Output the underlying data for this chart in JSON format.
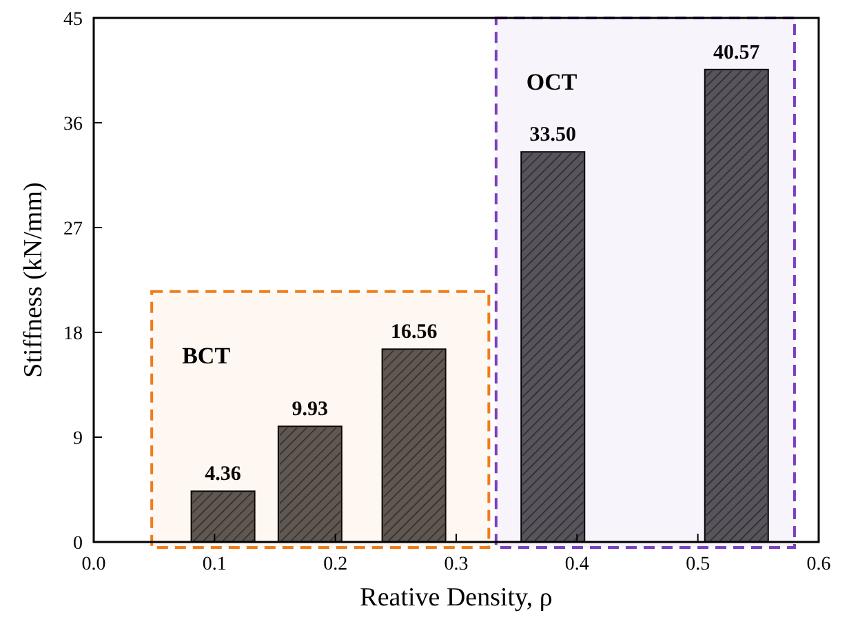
{
  "chart_data": {
    "type": "bar",
    "xlabel": "Reative Density, ρ",
    "ylabel": "Stiffness (kN/mm)",
    "x": [
      0.107,
      0.179,
      0.265,
      0.38,
      0.532
    ],
    "values": [
      4.36,
      9.93,
      16.56,
      33.5,
      40.57
    ],
    "value_labels": [
      "4.36",
      "9.93",
      "16.56",
      "33.50",
      "40.57"
    ],
    "color": "#555555",
    "xlim": [
      0,
      0.6
    ],
    "xticks": [
      {
        "value": 0,
        "label": "0.0"
      },
      0.1,
      0.2,
      0.3,
      0.4,
      0.5,
      0.6
    ],
    "ylim": [
      0,
      45
    ],
    "yticks": [
      0,
      9,
      18,
      27,
      36,
      45
    ],
    "bands": [
      {
        "axis": "x",
        "from": 0.048,
        "to": 0.327,
        "label": "BCT",
        "color": "#ee7d1a"
      },
      {
        "axis": "x",
        "from": 0.333,
        "to": 0.58,
        "label": "OCT",
        "color": "#7b3fbf"
      }
    ],
    "grid": false
  }
}
